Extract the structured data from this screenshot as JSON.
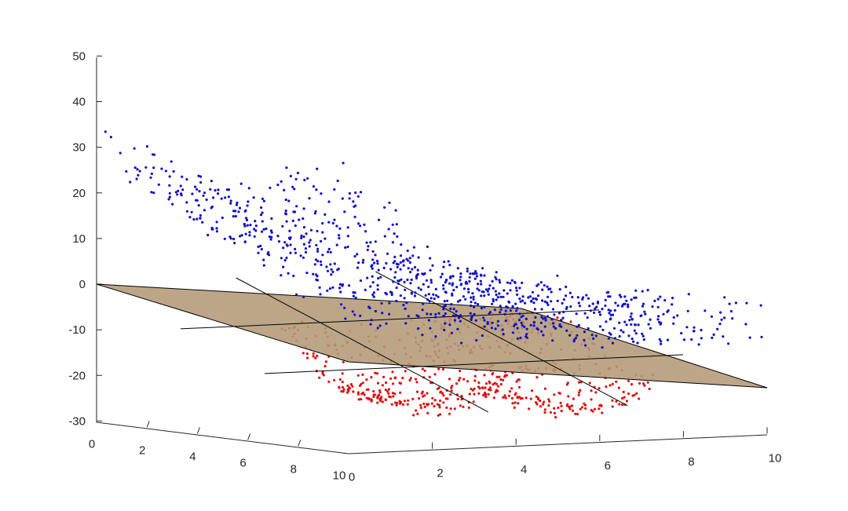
{
  "chart_data": {
    "type": "scatter3d",
    "title": "",
    "xlabel": "",
    "ylabel": "",
    "zlabel": "",
    "xlim": [
      0,
      10
    ],
    "ylim": [
      0,
      10
    ],
    "zlim": [
      -30,
      50
    ],
    "grid": false,
    "legend": "none",
    "x_ticks": [
      "0",
      "2",
      "4",
      "6",
      "8",
      "10"
    ],
    "y_ticks": [
      "0",
      "2",
      "4",
      "6",
      "8",
      "10"
    ],
    "z_ticks": [
      "-30",
      "-20",
      "-10",
      "0",
      "10",
      "20",
      "30",
      "40",
      "50"
    ],
    "colors": {
      "above_plane": "#1010c8",
      "below_plane": "#e01010",
      "plane": "#b49a78",
      "axes": "#262626"
    },
    "plane": {
      "description": "separating plane",
      "z_at_x0_y0": 0,
      "z_at_x10_y0": -22.5,
      "z_at_x0_y10": -22.5,
      "z_at_x10_y10": -22.5
    },
    "series": [
      {
        "color": "#1010c8",
        "approx_points": 900,
        "role": "points above plane"
      },
      {
        "color": "#e01010",
        "approx_points": 600,
        "role": "points below plane"
      }
    ]
  }
}
